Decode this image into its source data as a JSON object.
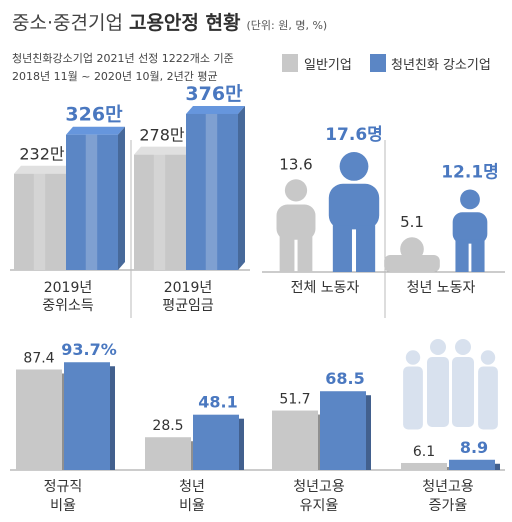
{
  "header": {
    "title_main": "중소·중견기업",
    "title_bold": "고용안정 현황",
    "unit": "(단위: 원, 명, %)",
    "note_line1": "청년친화강소기업 2021년 선정 1222개소 기준",
    "note_line2": "2018년 11월 ~ 2020년 10월, 2년간 평균"
  },
  "legend": {
    "general": "일반기업",
    "youth": "청년친화 강소기업"
  },
  "colors": {
    "general": "#c8c8c8",
    "youth": "#5b86c5",
    "youth_text": "#4a78c0",
    "figure_light": "#d8e1ee"
  },
  "chart_data": [
    {
      "type": "bar",
      "categories": [
        "2019년 중위소득",
        "2019년 평균임금"
      ],
      "series": [
        {
          "name": "일반기업",
          "values": [
            232,
            278
          ],
          "labels": [
            "232만",
            "278만"
          ]
        },
        {
          "name": "청년친화 강소기업",
          "values": [
            326,
            376
          ],
          "labels": [
            "326만",
            "376만"
          ]
        }
      ]
    },
    {
      "type": "bar",
      "categories": [
        "전체 노동자",
        "청년 노동자"
      ],
      "series": [
        {
          "name": "일반기업",
          "values": [
            13.6,
            5.1
          ],
          "labels": [
            "13.6",
            "5.1"
          ]
        },
        {
          "name": "청년친화 강소기업",
          "values": [
            17.6,
            12.1
          ],
          "labels": [
            "17.6명",
            "12.1명"
          ]
        }
      ]
    },
    {
      "type": "bar",
      "categories": [
        "정규직 비율",
        "청년 비율",
        "청년고용 유지율",
        "청년고용 증가율"
      ],
      "series": [
        {
          "name": "일반기업",
          "values": [
            87.4,
            28.5,
            51.7,
            6.1
          ],
          "labels": [
            "87.4",
            "28.5",
            "51.7",
            "6.1"
          ]
        },
        {
          "name": "청년친화 강소기업",
          "values": [
            93.7,
            48.1,
            68.5,
            8.9
          ],
          "labels": [
            "93.7%",
            "48.1",
            "68.5",
            "8.9"
          ]
        }
      ]
    }
  ]
}
